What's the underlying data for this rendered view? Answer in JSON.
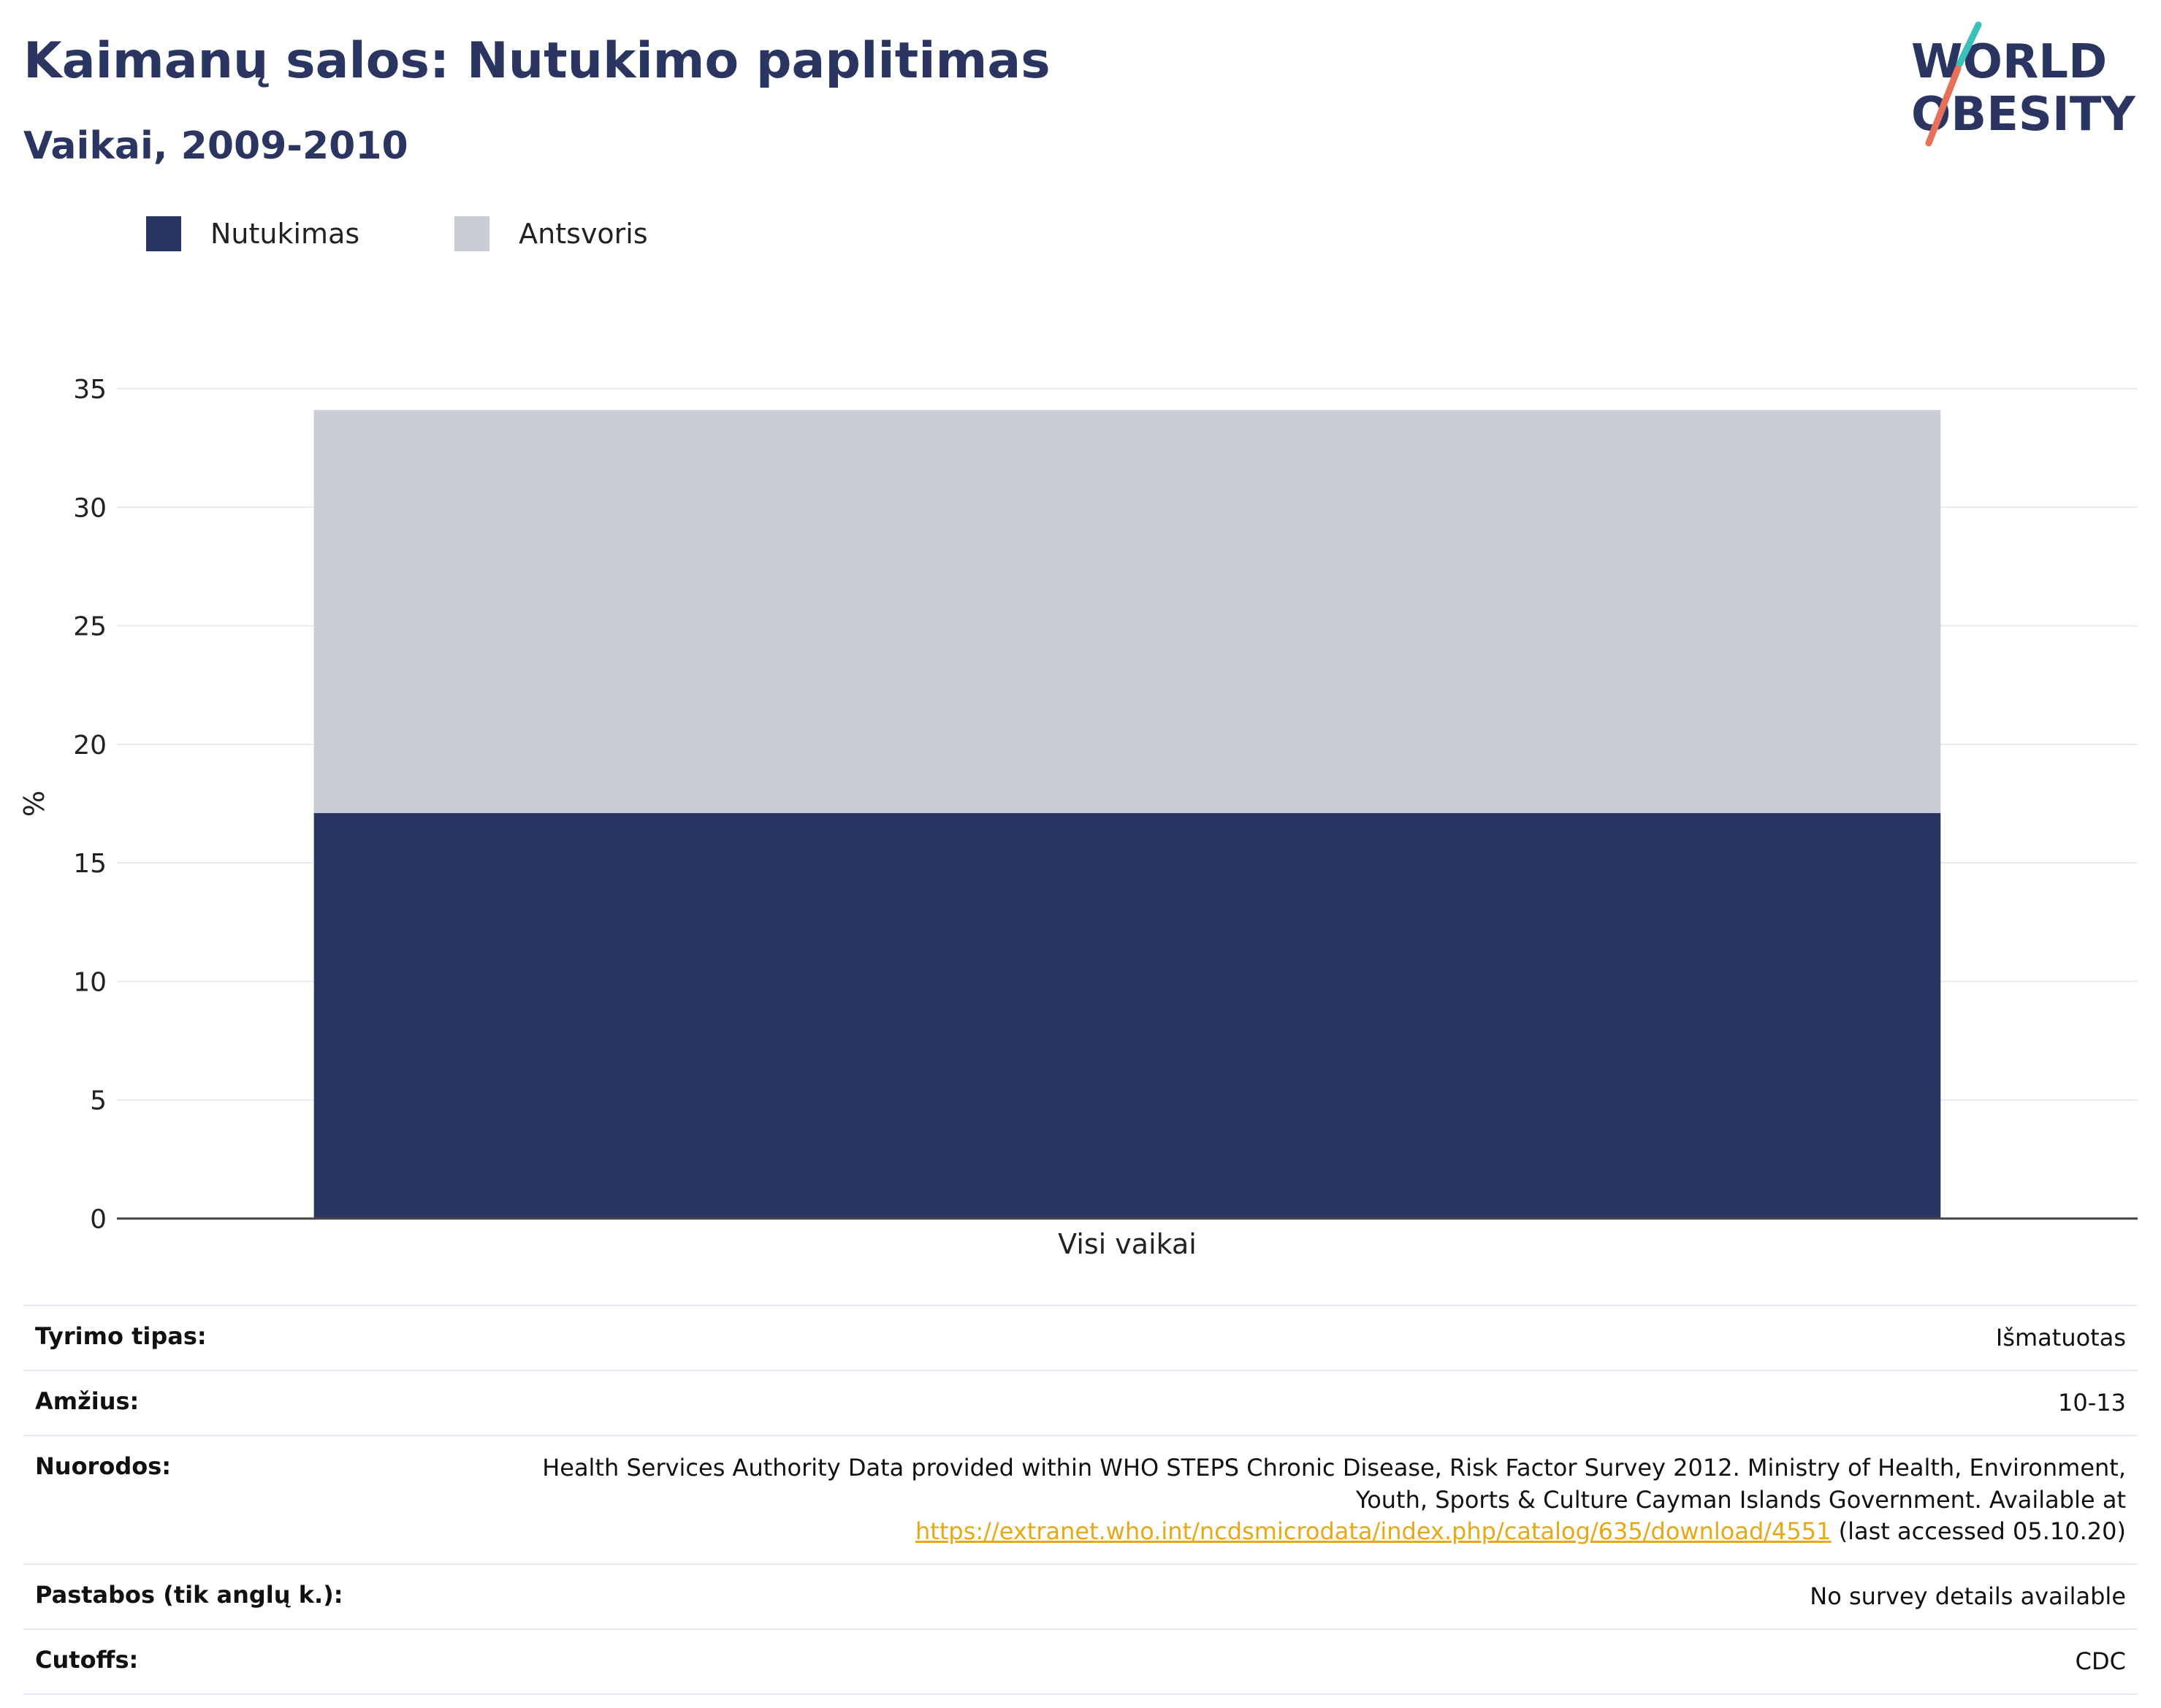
{
  "header": {
    "title": "Kaimanų salos: Nutukimo paplitimas",
    "subtitle": "Vaikai, 2009-2010",
    "logo_line1": "WORLD",
    "logo_line2": "OBESITY"
  },
  "colors": {
    "obesity": "#2a3661",
    "overweight": "#cacdd8",
    "title": "#2a3661",
    "link": "#e6a817"
  },
  "chart_data": {
    "type": "bar",
    "stacked": true,
    "categories": [
      "Visi vaikai"
    ],
    "series": [
      {
        "name": "Nutukimas",
        "values": [
          17.1
        ]
      },
      {
        "name": "Antsvoris",
        "values": [
          17.0
        ]
      }
    ],
    "ylabel": "%",
    "xlabel": "",
    "ylim": [
      0,
      35
    ],
    "yticks": [
      0,
      5,
      10,
      15,
      20,
      25,
      30,
      35
    ],
    "grid": true,
    "legend": "top-left"
  },
  "info": {
    "rows": [
      {
        "label": "Tyrimo tipas:",
        "value": "Išmatuotas"
      },
      {
        "label": "Amžius:",
        "value": "10-13"
      },
      {
        "label": "Nuorodos:",
        "value_line1": "Health Services Authority Data provided within WHO STEPS Chronic Disease, Risk Factor Survey 2012. Ministry of Health, Environment,",
        "value_line2": "Youth, Sports & Culture Cayman Islands Government. Available at",
        "link": "https://extranet.who.int/ncdsmicrodata/index.php/catalog/635/download/4551",
        "value_tail": " (last accessed 05.10.20)"
      },
      {
        "label": "Pastabos (tik anglų k.):",
        "value": "No survey details available"
      },
      {
        "label": "Cutoffs:",
        "value": "CDC"
      }
    ]
  }
}
